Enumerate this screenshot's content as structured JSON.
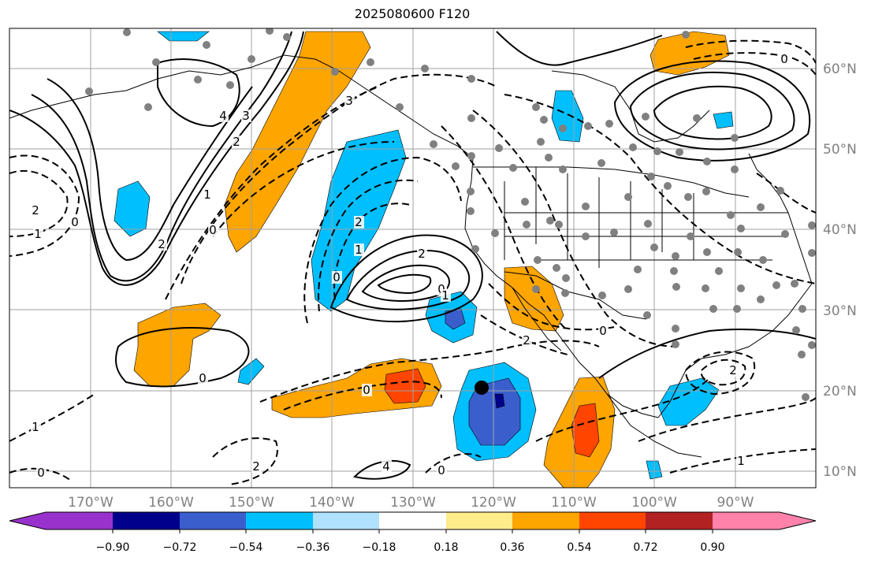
{
  "title": "2025080600 F120",
  "map": {
    "projection": "PlateCarree",
    "extent_lon": [
      -180,
      -80
    ],
    "extent_lat": [
      8,
      65
    ],
    "grid": true,
    "lat_ticks": [
      "10°N",
      "20°N",
      "30°N",
      "40°N",
      "50°N",
      "60°N"
    ],
    "lon_ticks": [
      "170°W",
      "160°W",
      "150°W",
      "140°W",
      "130°W",
      "120°W",
      "110°W",
      "100°W",
      "90°W"
    ],
    "contour_labels": [
      "2",
      "1",
      "0",
      "4",
      "3",
      "2",
      "1",
      "0",
      "2",
      "3",
      "2",
      "1",
      "0",
      "2",
      "0",
      "1",
      "0",
      "0",
      "1",
      "0",
      "2",
      "4",
      "0",
      "2",
      "0",
      "2",
      "1",
      "0"
    ],
    "marker": {
      "name": "black-dot",
      "lon": -121.9,
      "lat": 20.4
    }
  },
  "colorbar": {
    "ticks": [
      "−0.90",
      "−0.72",
      "−0.54",
      "−0.36",
      "−0.18",
      "0.18",
      "0.36",
      "0.54",
      "0.72",
      "0.90"
    ],
    "colors": [
      "#9932cc",
      "#00008b",
      "#3a5fcd",
      "#00bfff",
      "#b0e2ff",
      "#ffffff",
      "#ffec8b",
      "#ffa500",
      "#ff4500",
      "#b22222",
      "#ff82ab"
    ]
  }
}
